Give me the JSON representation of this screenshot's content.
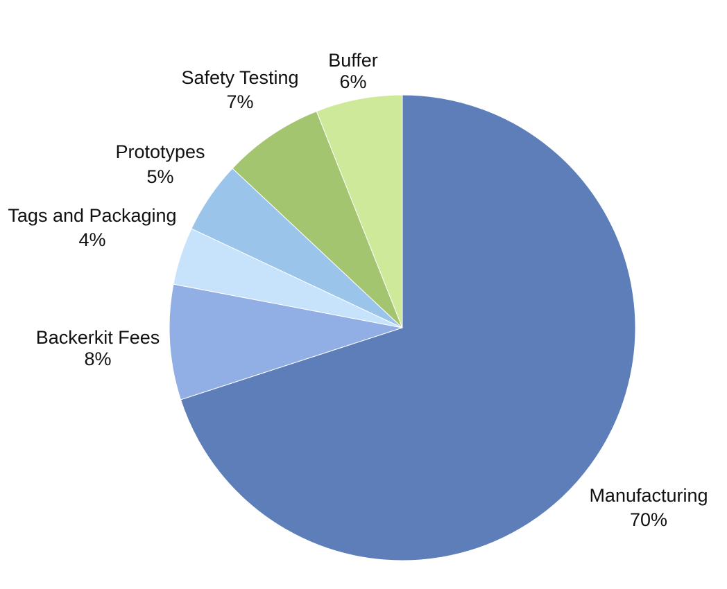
{
  "chart_data": {
    "type": "pie",
    "title": "",
    "start_angle_deg": 0,
    "direction": "clockwise",
    "slices": [
      {
        "label": "Manufacturing",
        "value": 70,
        "value_text": "70%",
        "color": "#5d7eb9"
      },
      {
        "label": "Backerkit Fees",
        "value": 8,
        "value_text": "8%",
        "color": "#91afe5"
      },
      {
        "label": "Tags and Packaging",
        "value": 4,
        "value_text": "4%",
        "color": "#c6e3fb"
      },
      {
        "label": "Prototypes",
        "value": 5,
        "value_text": "5%",
        "color": "#9ac4ea"
      },
      {
        "label": "Safety Testing",
        "value": 7,
        "value_text": "7%",
        "color": "#a4c570"
      },
      {
        "label": "Buffer",
        "value": 6,
        "value_text": "6%",
        "color": "#cde999"
      }
    ],
    "legend": "none",
    "data_labels": "outside"
  }
}
